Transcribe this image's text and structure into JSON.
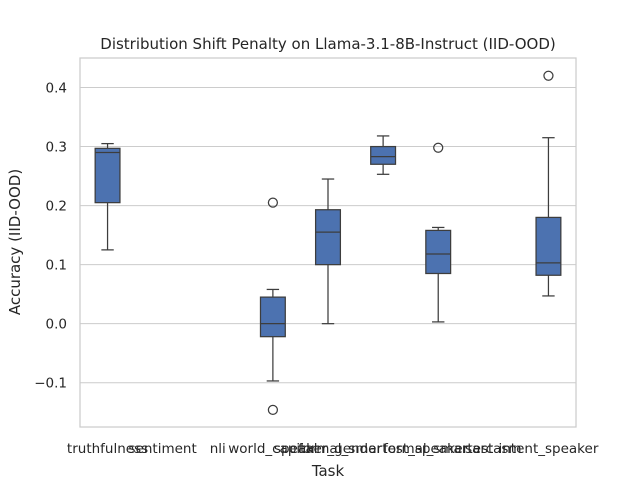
{
  "chart_data": {
    "type": "box",
    "title": "Distribution Shift Penalty on Llama-3.1-8B-Instruct (IID-OOD)",
    "xlabel": "Task",
    "ylabel": "Accuracy (IID-OOD)",
    "ylim": [
      -0.175,
      0.45
    ],
    "yticks": [
      -0.1,
      0.0,
      0.1,
      0.2,
      0.3,
      0.4
    ],
    "ytick_labels": [
      "−0.1",
      "0.0",
      "0.1",
      "0.2",
      "0.3",
      "0.4"
    ],
    "grid": "horizontal",
    "box_color": "#4c72b0",
    "line_color": "#3d3d3d",
    "categories": [
      "truthfulness",
      "sentiment",
      "nli",
      "world_capital",
      "speaker_gender",
      "formal_smartest_speaker",
      "formal_smartest",
      "sarcasm",
      "intent_speaker"
    ],
    "boxes": [
      {
        "category": "truthfulness",
        "whisker_low": 0.125,
        "q1": 0.205,
        "median": 0.29,
        "q3": 0.297,
        "whisker_high": 0.305,
        "outliers": []
      },
      {
        "category": "sentiment",
        "empty": true
      },
      {
        "category": "nli",
        "empty": true
      },
      {
        "category": "world_capital",
        "whisker_low": -0.097,
        "q1": -0.022,
        "median": 0.0,
        "q3": 0.045,
        "whisker_high": 0.058,
        "outliers": [
          0.205,
          -0.146
        ]
      },
      {
        "category": "speaker_gender",
        "whisker_low": 0.0,
        "q1": 0.1,
        "median": 0.155,
        "q3": 0.193,
        "whisker_high": 0.245,
        "outliers": []
      },
      {
        "category": "formal_smartest_speaker",
        "whisker_low": 0.253,
        "q1": 0.27,
        "median": 0.283,
        "q3": 0.3,
        "whisker_high": 0.318,
        "outliers": []
      },
      {
        "category": "formal_smartest",
        "whisker_low": 0.003,
        "q1": 0.085,
        "median": 0.118,
        "q3": 0.158,
        "whisker_high": 0.163,
        "outliers": [
          0.298
        ]
      },
      {
        "category": "sarcasm",
        "empty": true
      },
      {
        "category": "intent_speaker",
        "whisker_low": 0.047,
        "q1": 0.082,
        "median": 0.103,
        "q3": 0.18,
        "whisker_high": 0.315,
        "outliers": [
          0.42
        ]
      }
    ]
  }
}
